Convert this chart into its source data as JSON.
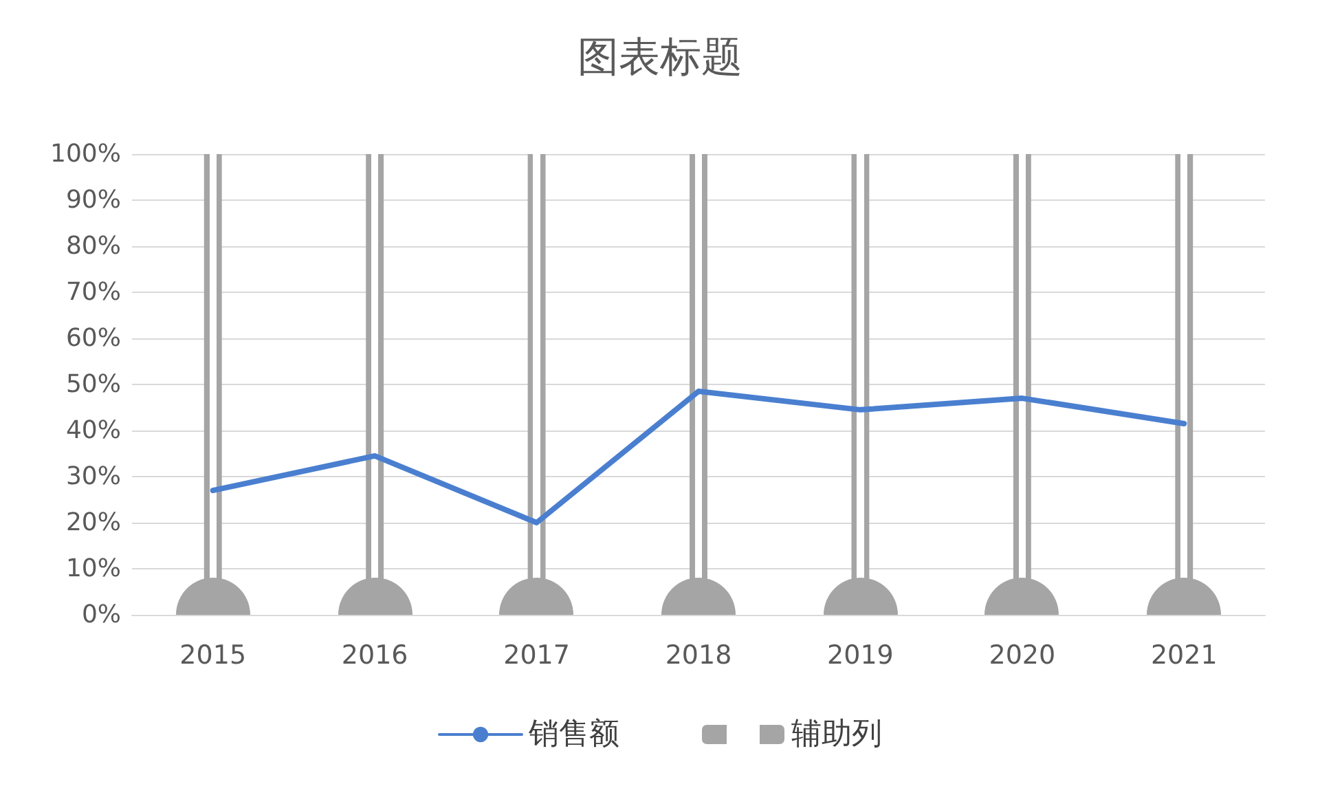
{
  "chart_data": {
    "type": "line",
    "title": "图表标题",
    "categories": [
      "2015",
      "2016",
      "2017",
      "2018",
      "2019",
      "2020",
      "2021"
    ],
    "series": [
      {
        "name": "销售额",
        "color": "#4a7fd0",
        "values": [
          27,
          34.5,
          20,
          48.5,
          44.5,
          47,
          41.5
        ]
      },
      {
        "name": "辅助列",
        "type": "bar",
        "color": "#a5a5a5",
        "values": [
          100,
          100,
          100,
          100,
          100,
          100,
          100
        ]
      }
    ],
    "ylim": [
      0,
      100
    ],
    "yticks": [
      {
        "value": 0,
        "label": "0%"
      },
      {
        "value": 10,
        "label": "10%"
      },
      {
        "value": 20,
        "label": "20%"
      },
      {
        "value": 30,
        "label": "30%"
      },
      {
        "value": 40,
        "label": "40%"
      },
      {
        "value": 50,
        "label": "50%"
      },
      {
        "value": 60,
        "label": "60%"
      },
      {
        "value": 70,
        "label": "70%"
      },
      {
        "value": 80,
        "label": "80%"
      },
      {
        "value": 90,
        "label": "90%"
      },
      {
        "value": 100,
        "label": "100%"
      }
    ],
    "grid": "y",
    "legend": "bottom",
    "marker": "none",
    "line_style": "solid"
  }
}
